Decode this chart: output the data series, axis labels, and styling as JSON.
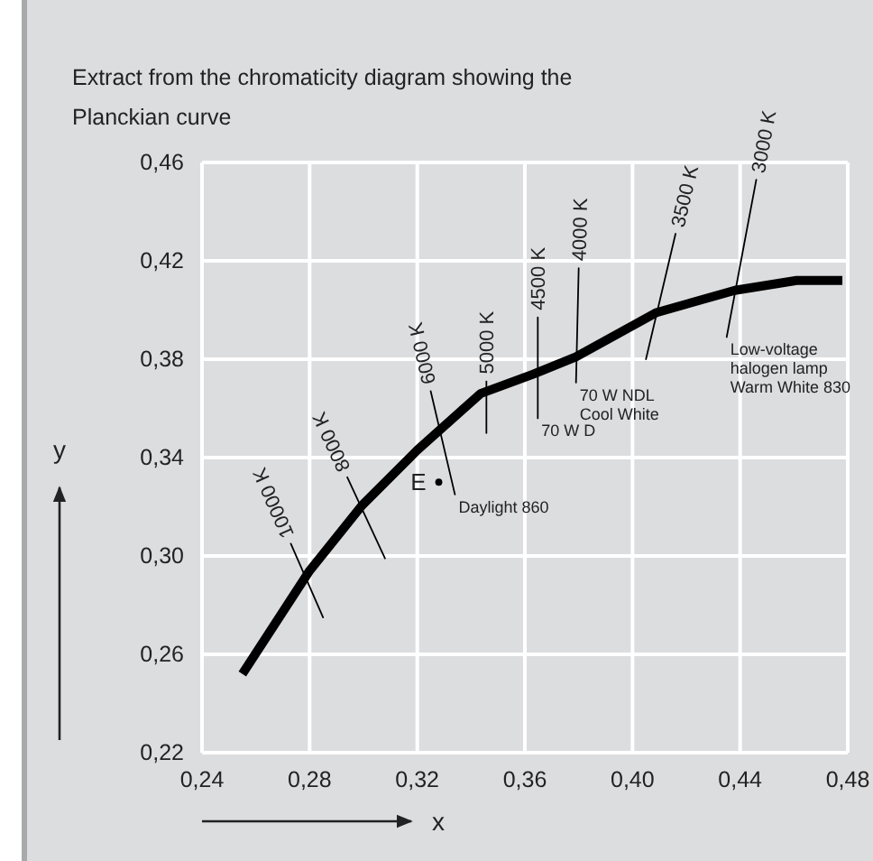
{
  "chart_data": {
    "type": "line",
    "title": "Extract from the chromaticity diagram showing the\nPlanckian curve",
    "xlabel": "x",
    "ylabel": "y",
    "xlim": [
      0.24,
      0.48
    ],
    "ylim": [
      0.22,
      0.46
    ],
    "xticks": [
      {
        "value": 0.24,
        "label": "0,24"
      },
      {
        "value": 0.28,
        "label": "0,28"
      },
      {
        "value": 0.32,
        "label": "0,32"
      },
      {
        "value": 0.36,
        "label": "0,36"
      },
      {
        "value": 0.4,
        "label": "0,40"
      },
      {
        "value": 0.44,
        "label": "0,44"
      },
      {
        "value": 0.48,
        "label": "0,48"
      }
    ],
    "yticks": [
      {
        "value": 0.22,
        "label": "0,22"
      },
      {
        "value": 0.26,
        "label": "0,26"
      },
      {
        "value": 0.3,
        "label": "0,30"
      },
      {
        "value": 0.34,
        "label": "0,34"
      },
      {
        "value": 0.38,
        "label": "0,38"
      },
      {
        "value": 0.42,
        "label": "0,42"
      },
      {
        "value": 0.46,
        "label": "0,46"
      }
    ],
    "grid": true,
    "series": [
      {
        "color": "#000000",
        "x": [
          0.255,
          0.28,
          0.2995,
          0.32,
          0.3435,
          0.3633,
          0.379,
          0.409,
          0.438,
          0.461,
          0.478
        ],
        "values": [
          0.252,
          0.294,
          0.3206,
          0.343,
          0.366,
          0.374,
          0.381,
          0.399,
          0.408,
          0.412,
          0.412
        ]
      },
      {
        "name": "10000 K",
        "color": "#000000",
        "x": [
          0.273,
          0.285
        ],
        "values": [
          0.305,
          0.275
        ]
      },
      {
        "name": "8000 K",
        "color": "#000000",
        "x": [
          0.294,
          0.308
        ],
        "values": [
          0.332,
          0.299
        ]
      },
      {
        "name": "6000 K",
        "color": "#000000",
        "x": [
          0.325,
          0.334
        ],
        "values": [
          0.367,
          0.325
        ]
      },
      {
        "name": "5000 K",
        "color": "#000000",
        "x": [
          0.3457,
          0.3457
        ],
        "values": [
          0.371,
          0.35
        ]
      },
      {
        "name": "4500 K",
        "color": "#000000",
        "x": [
          0.3648,
          0.3648
        ],
        "values": [
          0.397,
          0.356
        ]
      },
      {
        "name": "4000 K",
        "color": "#000000",
        "x": [
          0.38,
          0.379
        ],
        "values": [
          0.417,
          0.3705
        ]
      },
      {
        "name": "3500 K",
        "color": "#000000",
        "x": [
          0.416,
          0.405
        ],
        "values": [
          0.431,
          0.38
        ]
      },
      {
        "name": "3000 K",
        "color": "#000000",
        "x": [
          0.446,
          0.435
        ],
        "values": [
          0.453,
          0.389
        ]
      },
      {
        "name": "E",
        "type": "scatter",
        "marker": "circle",
        "color": "#000000",
        "x": [
          0.328
        ],
        "values": [
          0.33
        ]
      }
    ],
    "annotations": [
      {
        "text": "70 W D",
        "x": 0.3648,
        "y": 0.356
      },
      {
        "text": "Daylight 860",
        "x": 0.334,
        "y": 0.325
      },
      {
        "text": "70 W NDL\nCool White",
        "x": 0.379,
        "y": 0.3705
      },
      {
        "text": "Low-voltage\nhalogen lamp\nWarm White 830",
        "x": 0.435,
        "y": 0.389
      }
    ]
  }
}
